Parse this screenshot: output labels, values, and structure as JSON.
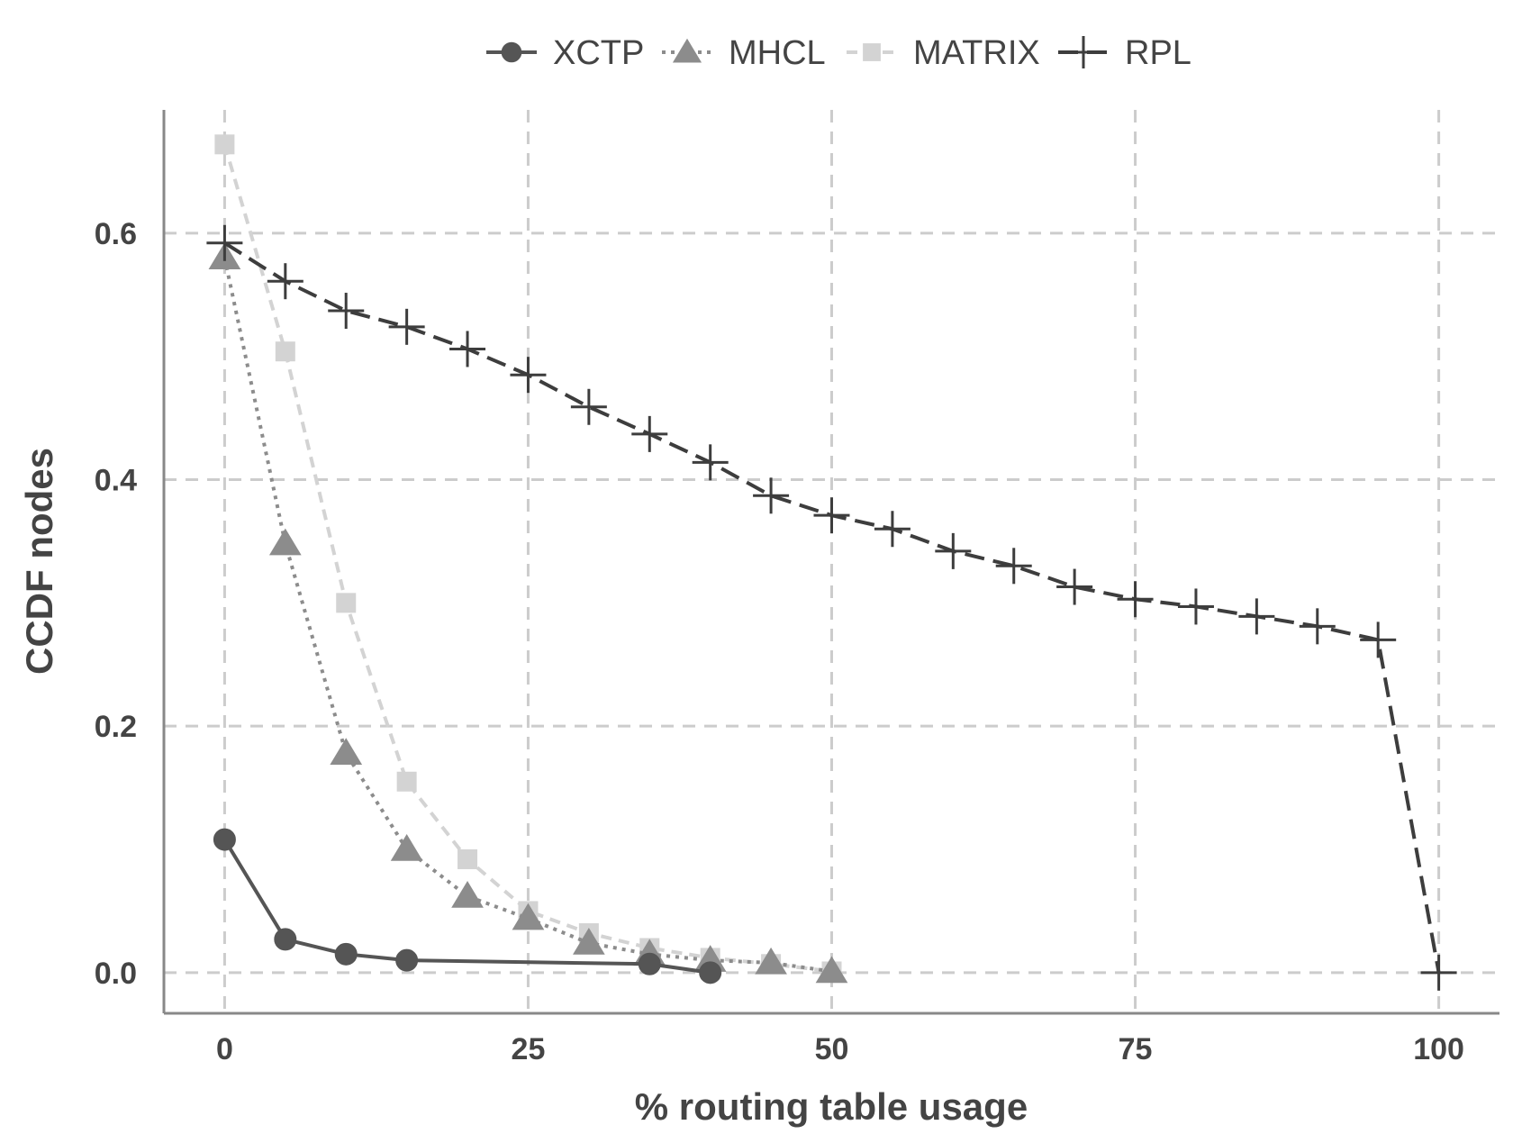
{
  "chart_data": {
    "type": "line",
    "xlabel": "% routing table usage",
    "ylabel": "CCDF nodes",
    "xlim": [
      -5,
      105
    ],
    "ylim": [
      -0.033,
      0.7
    ],
    "x_ticks": [
      0,
      25,
      50,
      75,
      100
    ],
    "x_tick_labels": [
      "0",
      "25",
      "50",
      "75",
      "100"
    ],
    "y_ticks": [
      0.0,
      0.2,
      0.4,
      0.6
    ],
    "y_tick_labels": [
      "0.0",
      "0.2",
      "0.4",
      "0.6"
    ],
    "grid": true,
    "legend_position": "top",
    "series": [
      {
        "name": "XCTP",
        "marker": "circle",
        "line_style": "solid",
        "color": "#555555",
        "x": [
          0,
          5,
          10,
          15,
          35,
          40
        ],
        "y": [
          0.108,
          0.027,
          0.015,
          0.01,
          0.007,
          0.0
        ]
      },
      {
        "name": "MHCL",
        "marker": "triangle",
        "line_style": "dotted",
        "color": "#8c8c8c",
        "x": [
          0,
          5,
          10,
          15,
          20,
          25,
          30,
          35,
          40,
          45,
          50
        ],
        "y": [
          0.58,
          0.348,
          0.178,
          0.1,
          0.062,
          0.044,
          0.024,
          0.015,
          0.01,
          0.008,
          0.001
        ]
      },
      {
        "name": "MATRIX",
        "marker": "square",
        "line_style": "dashed",
        "color": "#d3d3d3",
        "x": [
          0,
          5,
          10,
          15,
          20,
          25,
          30,
          35,
          40,
          45,
          50
        ],
        "y": [
          0.672,
          0.504,
          0.3,
          0.155,
          0.092,
          0.05,
          0.032,
          0.02,
          0.012,
          0.007,
          0.001
        ]
      },
      {
        "name": "RPL",
        "marker": "plus",
        "line_style": "longdash",
        "color": "#3d3d3d",
        "x": [
          0,
          5,
          10,
          15,
          20,
          25,
          30,
          35,
          40,
          45,
          50,
          55,
          60,
          65,
          70,
          75,
          80,
          85,
          90,
          95,
          100
        ],
        "y": [
          0.592,
          0.561,
          0.537,
          0.524,
          0.506,
          0.485,
          0.459,
          0.437,
          0.414,
          0.387,
          0.371,
          0.36,
          0.342,
          0.33,
          0.313,
          0.303,
          0.297,
          0.289,
          0.281,
          0.27,
          0.0
        ]
      }
    ]
  }
}
